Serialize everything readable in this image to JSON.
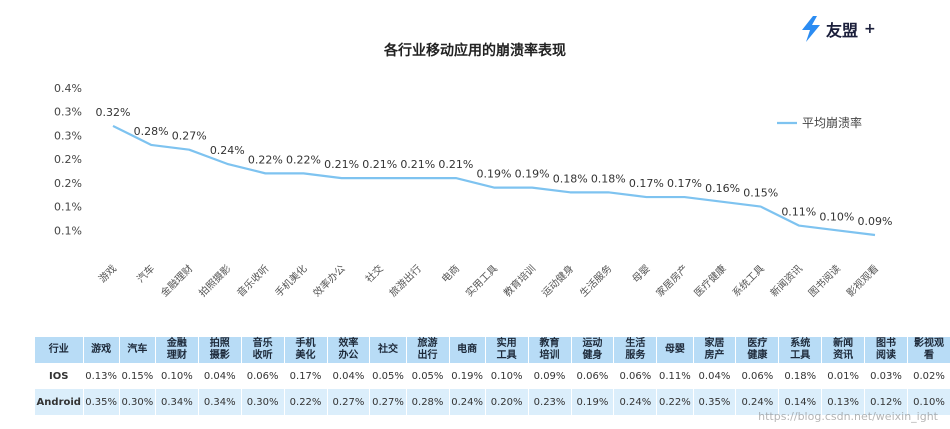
{
  "logo": {
    "text": "友盟",
    "plus": "+"
  },
  "chart_data": {
    "type": "line",
    "title": "各行业移动应用的崩溃率表现",
    "categories": [
      "游戏",
      "汽车",
      "金融理财",
      "拍照摄影",
      "音乐收听",
      "手机美化",
      "效率办公",
      "社交",
      "旅游出行",
      "电商",
      "实用工具",
      "教育培训",
      "运动健身",
      "生活服务",
      "母婴",
      "家居房产",
      "医疗健康",
      "系统工具",
      "新闻资讯",
      "图书阅读",
      "影视观看"
    ],
    "series": [
      {
        "name": "平均崩溃率",
        "values": [
          0.32,
          0.28,
          0.27,
          0.24,
          0.22,
          0.22,
          0.21,
          0.21,
          0.21,
          0.21,
          0.19,
          0.19,
          0.18,
          0.18,
          0.17,
          0.17,
          0.16,
          0.15,
          0.11,
          0.1,
          0.09
        ],
        "labels": [
          "0.32%",
          "0.28%",
          "0.27%",
          "0.24%",
          "0.22%",
          "0.22%",
          "0.21%",
          "0.21%",
          "0.21%",
          "0.21%",
          "0.19%",
          "0.19%",
          "0.18%",
          "0.18%",
          "0.17%",
          "0.17%",
          "0.16%",
          "0.15%",
          "0.11%",
          "0.10%",
          "0.09%"
        ]
      }
    ],
    "ylim": [
      0.05,
      0.4
    ],
    "ytick_values": [
      0.4,
      0.35,
      0.3,
      0.25,
      0.2,
      0.15,
      0.1
    ],
    "ytick_labels": [
      "0.4%",
      "0.3%",
      "0.3%",
      "0.2%",
      "0.2%",
      "0.1%",
      "0.1%"
    ],
    "legend": "top-right",
    "grid": false,
    "color": "#7ec3f0"
  },
  "table": {
    "row_labels": [
      "行业",
      "IOS",
      "Android"
    ],
    "headers": [
      "游戏",
      "汽车",
      "金融理财",
      "拍照摄影",
      "音乐收听",
      "手机美化",
      "效率办公",
      "社交",
      "旅游出行",
      "电商",
      "实用工具",
      "教育培训",
      "运动健身",
      "生活服务",
      "母婴",
      "家居房产",
      "医疗健康",
      "系统工具",
      "新闻资讯",
      "图书阅读",
      "影视观看"
    ],
    "ios": [
      "0.13%",
      "0.15%",
      "0.10%",
      "0.04%",
      "0.06%",
      "0.17%",
      "0.04%",
      "0.05%",
      "0.05%",
      "0.19%",
      "0.10%",
      "0.09%",
      "0.06%",
      "0.06%",
      "0.11%",
      "0.04%",
      "0.06%",
      "0.18%",
      "0.01%",
      "0.03%",
      "0.02%"
    ],
    "android": [
      "0.35%",
      "0.30%",
      "0.34%",
      "0.34%",
      "0.30%",
      "0.22%",
      "0.27%",
      "0.27%",
      "0.28%",
      "0.24%",
      "0.20%",
      "0.23%",
      "0.19%",
      "0.24%",
      "0.22%",
      "0.35%",
      "0.24%",
      "0.14%",
      "0.13%",
      "0.12%",
      "0.10%"
    ]
  },
  "watermark": "https://blog.csdn.net/weixin_ight"
}
